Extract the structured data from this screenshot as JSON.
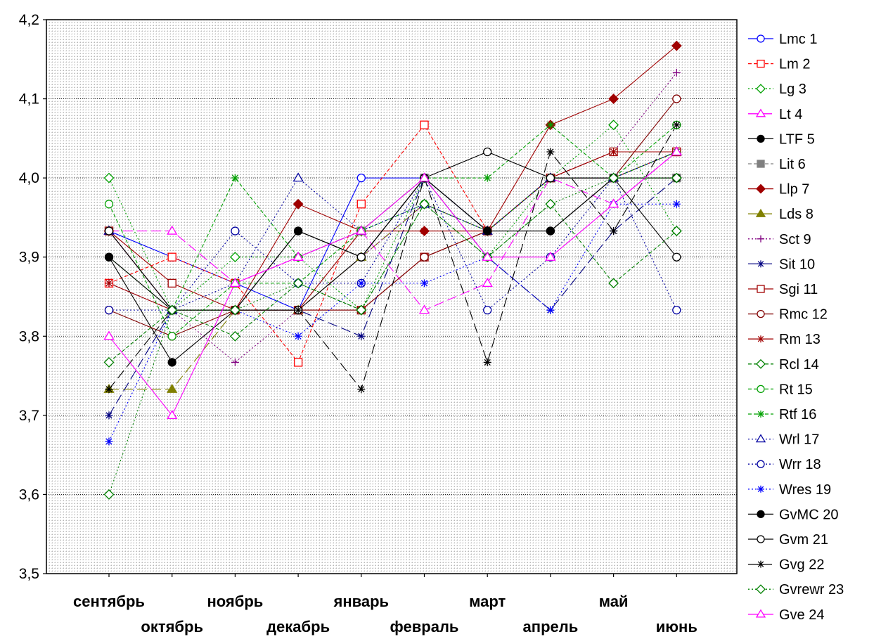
{
  "chart_data": {
    "type": "line",
    "title": "",
    "xlabel": "",
    "ylabel": "",
    "ylim": [
      3.5,
      4.2
    ],
    "yticks": [
      "3,5",
      "3,6",
      "3,7",
      "3,8",
      "3,9",
      "4,0",
      "4,1",
      "4,2"
    ],
    "categories": [
      "сентябрь",
      "октябрь",
      "ноябрь",
      "декабрь",
      "январь",
      "февраль",
      "март",
      "апрель",
      "май",
      "июнь"
    ],
    "grid": "dotted",
    "legend_position": "right",
    "series": [
      {
        "name": "Lmc 1",
        "color": "#0000ff",
        "marker": "circle-open",
        "dash": "solid",
        "values": [
          3.933,
          3.9,
          3.867,
          3.833,
          4.0,
          4.0,
          3.933,
          4.0,
          4.0,
          4.033
        ]
      },
      {
        "name": "Lm 2",
        "color": "#ff0000",
        "marker": "square-open",
        "dash": "short",
        "values": [
          3.867,
          3.9,
          3.867,
          3.767,
          3.967,
          4.067,
          3.933,
          4.0,
          4.0,
          4.033
        ]
      },
      {
        "name": "Lg 3",
        "color": "#00a000",
        "marker": "diamond-open",
        "dash": "dot",
        "values": [
          4.0,
          3.833,
          3.9,
          3.9,
          3.833,
          4.0,
          3.9,
          4.0,
          4.067,
          3.933
        ]
      },
      {
        "name": "Lt 4",
        "color": "#ff00ff",
        "marker": "triangle-open",
        "dash": "long",
        "values": [
          3.933,
          3.933,
          3.867,
          3.9,
          3.933,
          3.833,
          3.867,
          4.0,
          3.967,
          4.033
        ]
      },
      {
        "name": "LTF 5",
        "color": "#000000",
        "marker": "circle-filled",
        "dash": "solid",
        "values": [
          3.9,
          3.767,
          3.833,
          3.933,
          3.9,
          4.0,
          3.933,
          3.933,
          4.0,
          4.0
        ]
      },
      {
        "name": "Lit 6",
        "color": "#808080",
        "marker": "square-filled",
        "dash": "short",
        "values": [
          3.933,
          3.833,
          3.833,
          3.833,
          3.933,
          4.0,
          3.933,
          4.0,
          4.0,
          4.0
        ]
      },
      {
        "name": "Llp 7",
        "color": "#a00000",
        "marker": "diamond-filled",
        "dash": "solid",
        "values": [
          3.933,
          3.833,
          3.833,
          3.967,
          3.933,
          3.933,
          3.933,
          4.067,
          4.1,
          4.167
        ]
      },
      {
        "name": "Lds 8",
        "color": "#808000",
        "marker": "triangle-filled",
        "dash": "long",
        "values": [
          3.733,
          3.733,
          3.833,
          3.833,
          3.9,
          3.967,
          3.933,
          4.0,
          4.0,
          4.033
        ]
      },
      {
        "name": "Sct 9",
        "color": "#800080",
        "marker": "plus",
        "dash": "dot",
        "values": [
          3.867,
          3.833,
          3.767,
          3.833,
          3.9,
          3.967,
          3.933,
          4.0,
          4.033,
          4.133
        ]
      },
      {
        "name": "Sit 10",
        "color": "#000080",
        "marker": "asterisk",
        "dash": "long",
        "values": [
          3.7,
          3.833,
          3.833,
          3.833,
          3.8,
          4.0,
          3.9,
          3.833,
          3.933,
          4.0
        ]
      },
      {
        "name": "Sgi 11",
        "color": "#a00000",
        "marker": "square-open",
        "dash": "solid",
        "values": [
          3.933,
          3.867,
          3.833,
          3.833,
          3.833,
          3.9,
          3.933,
          4.0,
          4.033,
          4.033
        ]
      },
      {
        "name": "Rmc 12",
        "color": "#800000",
        "marker": "circle-open",
        "dash": "solid",
        "values": [
          3.833,
          3.8,
          3.833,
          3.833,
          3.833,
          3.9,
          3.933,
          4.0,
          4.0,
          4.1
        ]
      },
      {
        "name": "Rm 13",
        "color": "#a00000",
        "marker": "asterisk",
        "dash": "solid",
        "values": [
          3.867,
          3.833,
          3.833,
          3.833,
          3.933,
          3.933,
          3.933,
          4.0,
          4.033,
          4.033
        ]
      },
      {
        "name": "Rcl 14",
        "color": "#008000",
        "marker": "diamond-open",
        "dash": "short",
        "values": [
          3.767,
          3.833,
          3.8,
          3.867,
          3.833,
          3.967,
          3.9,
          3.967,
          3.867,
          3.933
        ]
      },
      {
        "name": "Rt 15",
        "color": "#00a000",
        "marker": "circle-open",
        "dash": "short",
        "values": [
          3.967,
          3.8,
          3.867,
          3.867,
          3.933,
          3.967,
          3.933,
          4.0,
          4.0,
          4.067
        ]
      },
      {
        "name": "Rtf 16",
        "color": "#00a000",
        "marker": "asterisk",
        "dash": "short",
        "values": [
          3.9,
          3.833,
          4.0,
          3.9,
          3.933,
          4.0,
          4.0,
          4.067,
          4.0,
          4.033
        ]
      },
      {
        "name": "Wrl 17",
        "color": "#0000a0",
        "marker": "triangle-open",
        "dash": "dot",
        "values": [
          3.933,
          3.833,
          3.867,
          4.0,
          3.933,
          3.967,
          3.933,
          4.0,
          4.0,
          4.033
        ]
      },
      {
        "name": "Wrr 18",
        "color": "#0000a0",
        "marker": "circle-open",
        "dash": "dot",
        "values": [
          3.833,
          3.833,
          3.933,
          3.867,
          3.867,
          4.0,
          3.833,
          3.9,
          4.0,
          3.833
        ]
      },
      {
        "name": "Wres 19",
        "color": "#0000ff",
        "marker": "asterisk",
        "dash": "dot",
        "values": [
          3.667,
          3.833,
          3.833,
          3.8,
          3.867,
          3.867,
          3.9,
          3.833,
          3.967,
          3.967
        ]
      },
      {
        "name": "GvMC 20",
        "color": "#000000",
        "marker": "circle-filled",
        "dash": "solid",
        "values": [
          3.9,
          3.833,
          3.833,
          3.933,
          3.9,
          4.0,
          3.933,
          3.933,
          4.0,
          4.0
        ]
      },
      {
        "name": "Gvm 21",
        "color": "#000000",
        "marker": "circle-open",
        "dash": "solid",
        "values": [
          3.933,
          3.833,
          3.833,
          3.833,
          3.9,
          4.0,
          4.033,
          4.0,
          4.0,
          3.9
        ]
      },
      {
        "name": "Gvg 22",
        "color": "#000000",
        "marker": "asterisk",
        "dash": "long",
        "values": [
          3.733,
          3.833,
          3.833,
          3.833,
          3.733,
          4.0,
          3.767,
          4.033,
          3.933,
          4.067
        ]
      },
      {
        "name": "Gvrewr 23",
        "color": "#008000",
        "marker": "diamond-open",
        "dash": "dot",
        "values": [
          3.6,
          3.833,
          3.833,
          3.867,
          3.833,
          3.967,
          3.9,
          3.967,
          4.0,
          4.0
        ]
      },
      {
        "name": "Gve 24",
        "color": "#ff00ff",
        "marker": "triangle-open",
        "dash": "solid",
        "values": [
          3.8,
          3.7,
          3.867,
          3.9,
          3.933,
          4.0,
          3.9,
          3.9,
          3.967,
          4.033
        ]
      }
    ]
  }
}
